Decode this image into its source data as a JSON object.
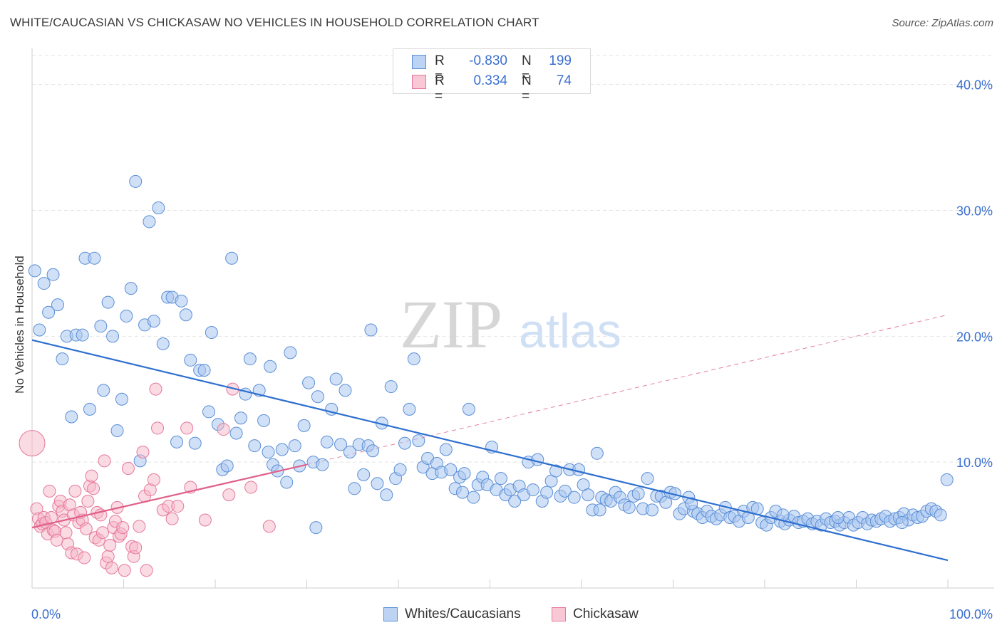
{
  "header": {
    "title": "WHITE/CAUCASIAN VS CHICKASAW NO VEHICLES IN HOUSEHOLD CORRELATION CHART",
    "source": "Source: ZipAtlas.com"
  },
  "watermark": {
    "zip": "ZIP",
    "atlas": "atlas"
  },
  "legend": {
    "series1": {
      "r_label": "R =",
      "r_value": "-0.830",
      "n_label": "N =",
      "n_value": "199"
    },
    "series2": {
      "r_label": "R =",
      "r_value": "0.334",
      "n_label": "N =",
      "n_value": "74"
    }
  },
  "bottom_legend": {
    "series1": "Whites/Caucasians",
    "series2": "Chickasaw"
  },
  "colors": {
    "blue_fill": "#aac6f0",
    "blue_stroke": "#5b8fd6",
    "blue_line": "#2e6fd0",
    "pink_fill": "#f5b6c8",
    "pink_stroke": "#e6799c",
    "pink_line": "#e0608a",
    "axis_text": "#3a6fd0",
    "grid": "#e3e3e3"
  },
  "chart_data": {
    "type": "scatter",
    "title": "WHITE/CAUCASIAN VS CHICKASAW NO VEHICLES IN HOUSEHOLD CORRELATION CHART",
    "xlabel": "",
    "ylabel": "No Vehicles in Household",
    "xlim": [
      0,
      100
    ],
    "ylim": [
      0,
      40
    ],
    "x_tick_labels": [
      "0.0%",
      "100.0%"
    ],
    "y_tick_labels": [
      "10.0%",
      "20.0%",
      "30.0%",
      "40.0%"
    ],
    "y_ticks": [
      10,
      20,
      30,
      40
    ],
    "grid": true,
    "legend_position": "top-center",
    "series": [
      {
        "name": "Whites/Caucasians",
        "r": -0.83,
        "n": 199,
        "trend": {
          "x": [
            0,
            100
          ],
          "y": [
            19.7,
            2.2
          ]
        },
        "points": [
          [
            0.3,
            25.2
          ],
          [
            0.8,
            20.5
          ],
          [
            1.3,
            24.2
          ],
          [
            1.8,
            21.9
          ],
          [
            2.3,
            24.9
          ],
          [
            2.8,
            22.5
          ],
          [
            3.3,
            18.2
          ],
          [
            3.8,
            20.0
          ],
          [
            4.3,
            13.6
          ],
          [
            4.8,
            20.1
          ],
          [
            5.5,
            20.1
          ],
          [
            5.8,
            26.2
          ],
          [
            6.3,
            14.2
          ],
          [
            6.8,
            26.2
          ],
          [
            7.5,
            20.8
          ],
          [
            7.8,
            15.7
          ],
          [
            8.3,
            22.7
          ],
          [
            8.8,
            20.0
          ],
          [
            9.3,
            12.5
          ],
          [
            9.8,
            15.0
          ],
          [
            10.3,
            21.6
          ],
          [
            10.8,
            23.8
          ],
          [
            11.3,
            32.3
          ],
          [
            11.8,
            10.1
          ],
          [
            12.3,
            20.9
          ],
          [
            12.8,
            29.1
          ],
          [
            13.3,
            21.2
          ],
          [
            13.8,
            30.2
          ],
          [
            14.3,
            19.4
          ],
          [
            14.8,
            23.1
          ],
          [
            15.3,
            23.1
          ],
          [
            15.8,
            11.6
          ],
          [
            16.3,
            22.8
          ],
          [
            16.8,
            21.7
          ],
          [
            17.3,
            18.1
          ],
          [
            17.8,
            11.5
          ],
          [
            18.3,
            17.3
          ],
          [
            18.8,
            17.3
          ],
          [
            19.3,
            14.0
          ],
          [
            19.6,
            20.3
          ],
          [
            20.3,
            13.0
          ],
          [
            20.8,
            9.4
          ],
          [
            21.3,
            9.7
          ],
          [
            21.8,
            26.2
          ],
          [
            22.3,
            12.3
          ],
          [
            22.8,
            13.5
          ],
          [
            23.3,
            15.4
          ],
          [
            23.8,
            18.2
          ],
          [
            24.3,
            11.3
          ],
          [
            24.8,
            15.7
          ],
          [
            25.3,
            13.3
          ],
          [
            25.8,
            10.8
          ],
          [
            26.3,
            9.8
          ],
          [
            26.8,
            9.3
          ],
          [
            27.3,
            11.0
          ],
          [
            27.8,
            8.4
          ],
          [
            28.2,
            18.7
          ],
          [
            28.7,
            11.3
          ],
          [
            29.2,
            9.7
          ],
          [
            29.7,
            12.9
          ],
          [
            30.2,
            16.3
          ],
          [
            30.7,
            10.0
          ],
          [
            31.2,
            15.2
          ],
          [
            31.7,
            9.8
          ],
          [
            32.2,
            11.6
          ],
          [
            32.7,
            14.2
          ],
          [
            33.2,
            16.6
          ],
          [
            33.7,
            11.4
          ],
          [
            34.2,
            15.7
          ],
          [
            34.7,
            10.8
          ],
          [
            35.2,
            7.9
          ],
          [
            35.7,
            11.4
          ],
          [
            36.2,
            9.0
          ],
          [
            36.7,
            11.3
          ],
          [
            37.2,
            10.9
          ],
          [
            37.7,
            8.3
          ],
          [
            38.2,
            13.1
          ],
          [
            38.7,
            7.4
          ],
          [
            39.2,
            16.0
          ],
          [
            39.7,
            8.7
          ],
          [
            40.2,
            9.4
          ],
          [
            40.7,
            11.5
          ],
          [
            41.2,
            14.2
          ],
          [
            41.7,
            18.2
          ],
          [
            42.2,
            11.7
          ],
          [
            42.7,
            9.6
          ],
          [
            43.2,
            10.3
          ],
          [
            43.7,
            9.1
          ],
          [
            44.2,
            9.9
          ],
          [
            44.7,
            9.2
          ],
          [
            45.2,
            11.0
          ],
          [
            45.7,
            9.4
          ],
          [
            46.2,
            7.9
          ],
          [
            46.7,
            8.8
          ],
          [
            47.2,
            9.1
          ],
          [
            47.7,
            14.2
          ],
          [
            48.2,
            7.2
          ],
          [
            48.7,
            8.2
          ],
          [
            49.2,
            8.8
          ],
          [
            49.7,
            8.2
          ],
          [
            50.2,
            11.2
          ],
          [
            50.7,
            7.8
          ],
          [
            51.2,
            8.7
          ],
          [
            51.7,
            7.4
          ],
          [
            52.2,
            7.8
          ],
          [
            52.7,
            6.9
          ],
          [
            53.2,
            8.1
          ],
          [
            53.7,
            7.4
          ],
          [
            54.2,
            10.0
          ],
          [
            54.7,
            7.8
          ],
          [
            55.2,
            10.2
          ],
          [
            55.7,
            6.9
          ],
          [
            56.2,
            7.6
          ],
          [
            56.7,
            8.5
          ],
          [
            57.2,
            9.3
          ],
          [
            57.7,
            7.3
          ],
          [
            58.2,
            7.7
          ],
          [
            58.7,
            9.4
          ],
          [
            59.2,
            7.2
          ],
          [
            59.7,
            9.4
          ],
          [
            60.2,
            8.2
          ],
          [
            60.7,
            7.4
          ],
          [
            61.2,
            6.2
          ],
          [
            61.7,
            10.7
          ],
          [
            62.2,
            7.2
          ],
          [
            62.7,
            7.0
          ],
          [
            63.2,
            6.9
          ],
          [
            63.7,
            7.6
          ],
          [
            64.2,
            7.2
          ],
          [
            64.7,
            6.6
          ],
          [
            65.2,
            6.4
          ],
          [
            65.7,
            7.3
          ],
          [
            66.2,
            7.5
          ],
          [
            66.7,
            6.3
          ],
          [
            67.2,
            8.7
          ],
          [
            67.7,
            6.2
          ],
          [
            68.2,
            7.3
          ],
          [
            68.7,
            7.3
          ],
          [
            69.2,
            6.8
          ],
          [
            69.7,
            7.6
          ],
          [
            70.2,
            7.5
          ],
          [
            70.7,
            5.9
          ],
          [
            71.2,
            6.3
          ],
          [
            71.7,
            7.2
          ],
          [
            72.2,
            6.1
          ],
          [
            72.7,
            5.9
          ],
          [
            73.2,
            5.6
          ],
          [
            73.7,
            6.1
          ],
          [
            74.2,
            5.7
          ],
          [
            74.7,
            5.5
          ],
          [
            75.2,
            5.8
          ],
          [
            75.7,
            6.4
          ],
          [
            76.2,
            5.6
          ],
          [
            76.7,
            5.7
          ],
          [
            77.2,
            5.3
          ],
          [
            77.7,
            6.1
          ],
          [
            78.2,
            5.6
          ],
          [
            78.7,
            6.4
          ],
          [
            79.2,
            6.3
          ],
          [
            79.7,
            5.2
          ],
          [
            80.2,
            5.0
          ],
          [
            80.7,
            5.6
          ],
          [
            81.2,
            6.1
          ],
          [
            81.7,
            5.3
          ],
          [
            82.2,
            5.1
          ],
          [
            82.7,
            5.4
          ],
          [
            83.2,
            5.7
          ],
          [
            83.7,
            5.2
          ],
          [
            84.2,
            5.3
          ],
          [
            84.7,
            5.5
          ],
          [
            85.2,
            5.1
          ],
          [
            85.7,
            5.3
          ],
          [
            86.2,
            5.0
          ],
          [
            86.7,
            5.5
          ],
          [
            87.2,
            5.2
          ],
          [
            87.7,
            5.3
          ],
          [
            88.2,
            5.0
          ],
          [
            88.7,
            5.2
          ],
          [
            89.2,
            5.6
          ],
          [
            89.7,
            5.0
          ],
          [
            90.2,
            5.2
          ],
          [
            90.7,
            5.6
          ],
          [
            91.2,
            5.1
          ],
          [
            91.7,
            5.4
          ],
          [
            92.2,
            5.3
          ],
          [
            92.7,
            5.5
          ],
          [
            93.2,
            5.7
          ],
          [
            93.7,
            5.3
          ],
          [
            94.2,
            5.5
          ],
          [
            94.7,
            5.6
          ],
          [
            95.2,
            5.9
          ],
          [
            95.7,
            5.4
          ],
          [
            96.2,
            5.8
          ],
          [
            96.7,
            5.6
          ],
          [
            97.2,
            5.7
          ],
          [
            97.7,
            6.1
          ],
          [
            98.2,
            6.3
          ],
          [
            98.7,
            6.1
          ],
          [
            99.2,
            5.8
          ],
          [
            99.9,
            8.6
          ],
          [
            31.0,
            4.8
          ],
          [
            26.0,
            17.6
          ],
          [
            37.0,
            20.5
          ],
          [
            47.0,
            7.6
          ],
          [
            62.0,
            6.2
          ],
          [
            72.0,
            6.7
          ],
          [
            82.0,
            5.8
          ],
          [
            88.0,
            5.6
          ],
          [
            95.0,
            5.2
          ]
        ]
      },
      {
        "name": "Chickasaw",
        "r": 0.334,
        "n": 74,
        "trend": {
          "x": [
            0,
            30
          ],
          "y": [
            4.8,
            9.8
          ]
        },
        "dashed_extension": {
          "x": [
            30,
            100
          ],
          "y": [
            9.8,
            21.7
          ]
        },
        "points": [
          [
            0.0,
            11.5
          ],
          [
            0.5,
            6.3
          ],
          [
            0.7,
            5.5
          ],
          [
            0.9,
            4.9
          ],
          [
            1.1,
            5.1
          ],
          [
            1.3,
            5.6
          ],
          [
            1.5,
            5.2
          ],
          [
            1.7,
            4.3
          ],
          [
            1.9,
            7.7
          ],
          [
            2.1,
            5.6
          ],
          [
            2.3,
            4.6
          ],
          [
            2.5,
            4.5
          ],
          [
            2.7,
            3.8
          ],
          [
            2.9,
            6.5
          ],
          [
            3.1,
            6.9
          ],
          [
            3.3,
            6.1
          ],
          [
            3.5,
            5.4
          ],
          [
            3.7,
            4.4
          ],
          [
            3.9,
            3.5
          ],
          [
            4.1,
            6.6
          ],
          [
            4.3,
            2.8
          ],
          [
            4.5,
            5.8
          ],
          [
            4.7,
            7.7
          ],
          [
            4.9,
            2.7
          ],
          [
            5.1,
            5.2
          ],
          [
            5.3,
            6.0
          ],
          [
            5.5,
            5.4
          ],
          [
            5.7,
            2.4
          ],
          [
            5.9,
            4.7
          ],
          [
            6.1,
            6.9
          ],
          [
            6.3,
            8.1
          ],
          [
            6.5,
            8.9
          ],
          [
            6.7,
            7.9
          ],
          [
            6.9,
            4.0
          ],
          [
            7.1,
            6.0
          ],
          [
            7.3,
            3.8
          ],
          [
            7.5,
            5.8
          ],
          [
            7.7,
            4.4
          ],
          [
            7.9,
            10.1
          ],
          [
            8.1,
            2.0
          ],
          [
            8.3,
            2.5
          ],
          [
            8.5,
            3.4
          ],
          [
            8.7,
            1.6
          ],
          [
            8.9,
            4.8
          ],
          [
            9.1,
            5.3
          ],
          [
            9.3,
            6.4
          ],
          [
            9.5,
            4.1
          ],
          [
            9.7,
            4.3
          ],
          [
            9.9,
            4.8
          ],
          [
            10.1,
            1.4
          ],
          [
            10.5,
            9.5
          ],
          [
            10.9,
            3.3
          ],
          [
            11.1,
            2.5
          ],
          [
            11.3,
            3.2
          ],
          [
            11.7,
            4.9
          ],
          [
            12.1,
            10.8
          ],
          [
            12.3,
            7.3
          ],
          [
            12.5,
            1.4
          ],
          [
            12.9,
            7.8
          ],
          [
            13.3,
            8.6
          ],
          [
            13.5,
            15.8
          ],
          [
            13.7,
            12.7
          ],
          [
            14.3,
            6.2
          ],
          [
            14.9,
            6.5
          ],
          [
            15.3,
            5.5
          ],
          [
            15.9,
            6.5
          ],
          [
            16.9,
            12.7
          ],
          [
            17.3,
            8.0
          ],
          [
            18.9,
            5.4
          ],
          [
            20.9,
            12.6
          ],
          [
            21.5,
            7.4
          ],
          [
            21.9,
            15.8
          ],
          [
            23.9,
            8.0
          ],
          [
            25.9,
            4.9
          ]
        ]
      }
    ]
  }
}
